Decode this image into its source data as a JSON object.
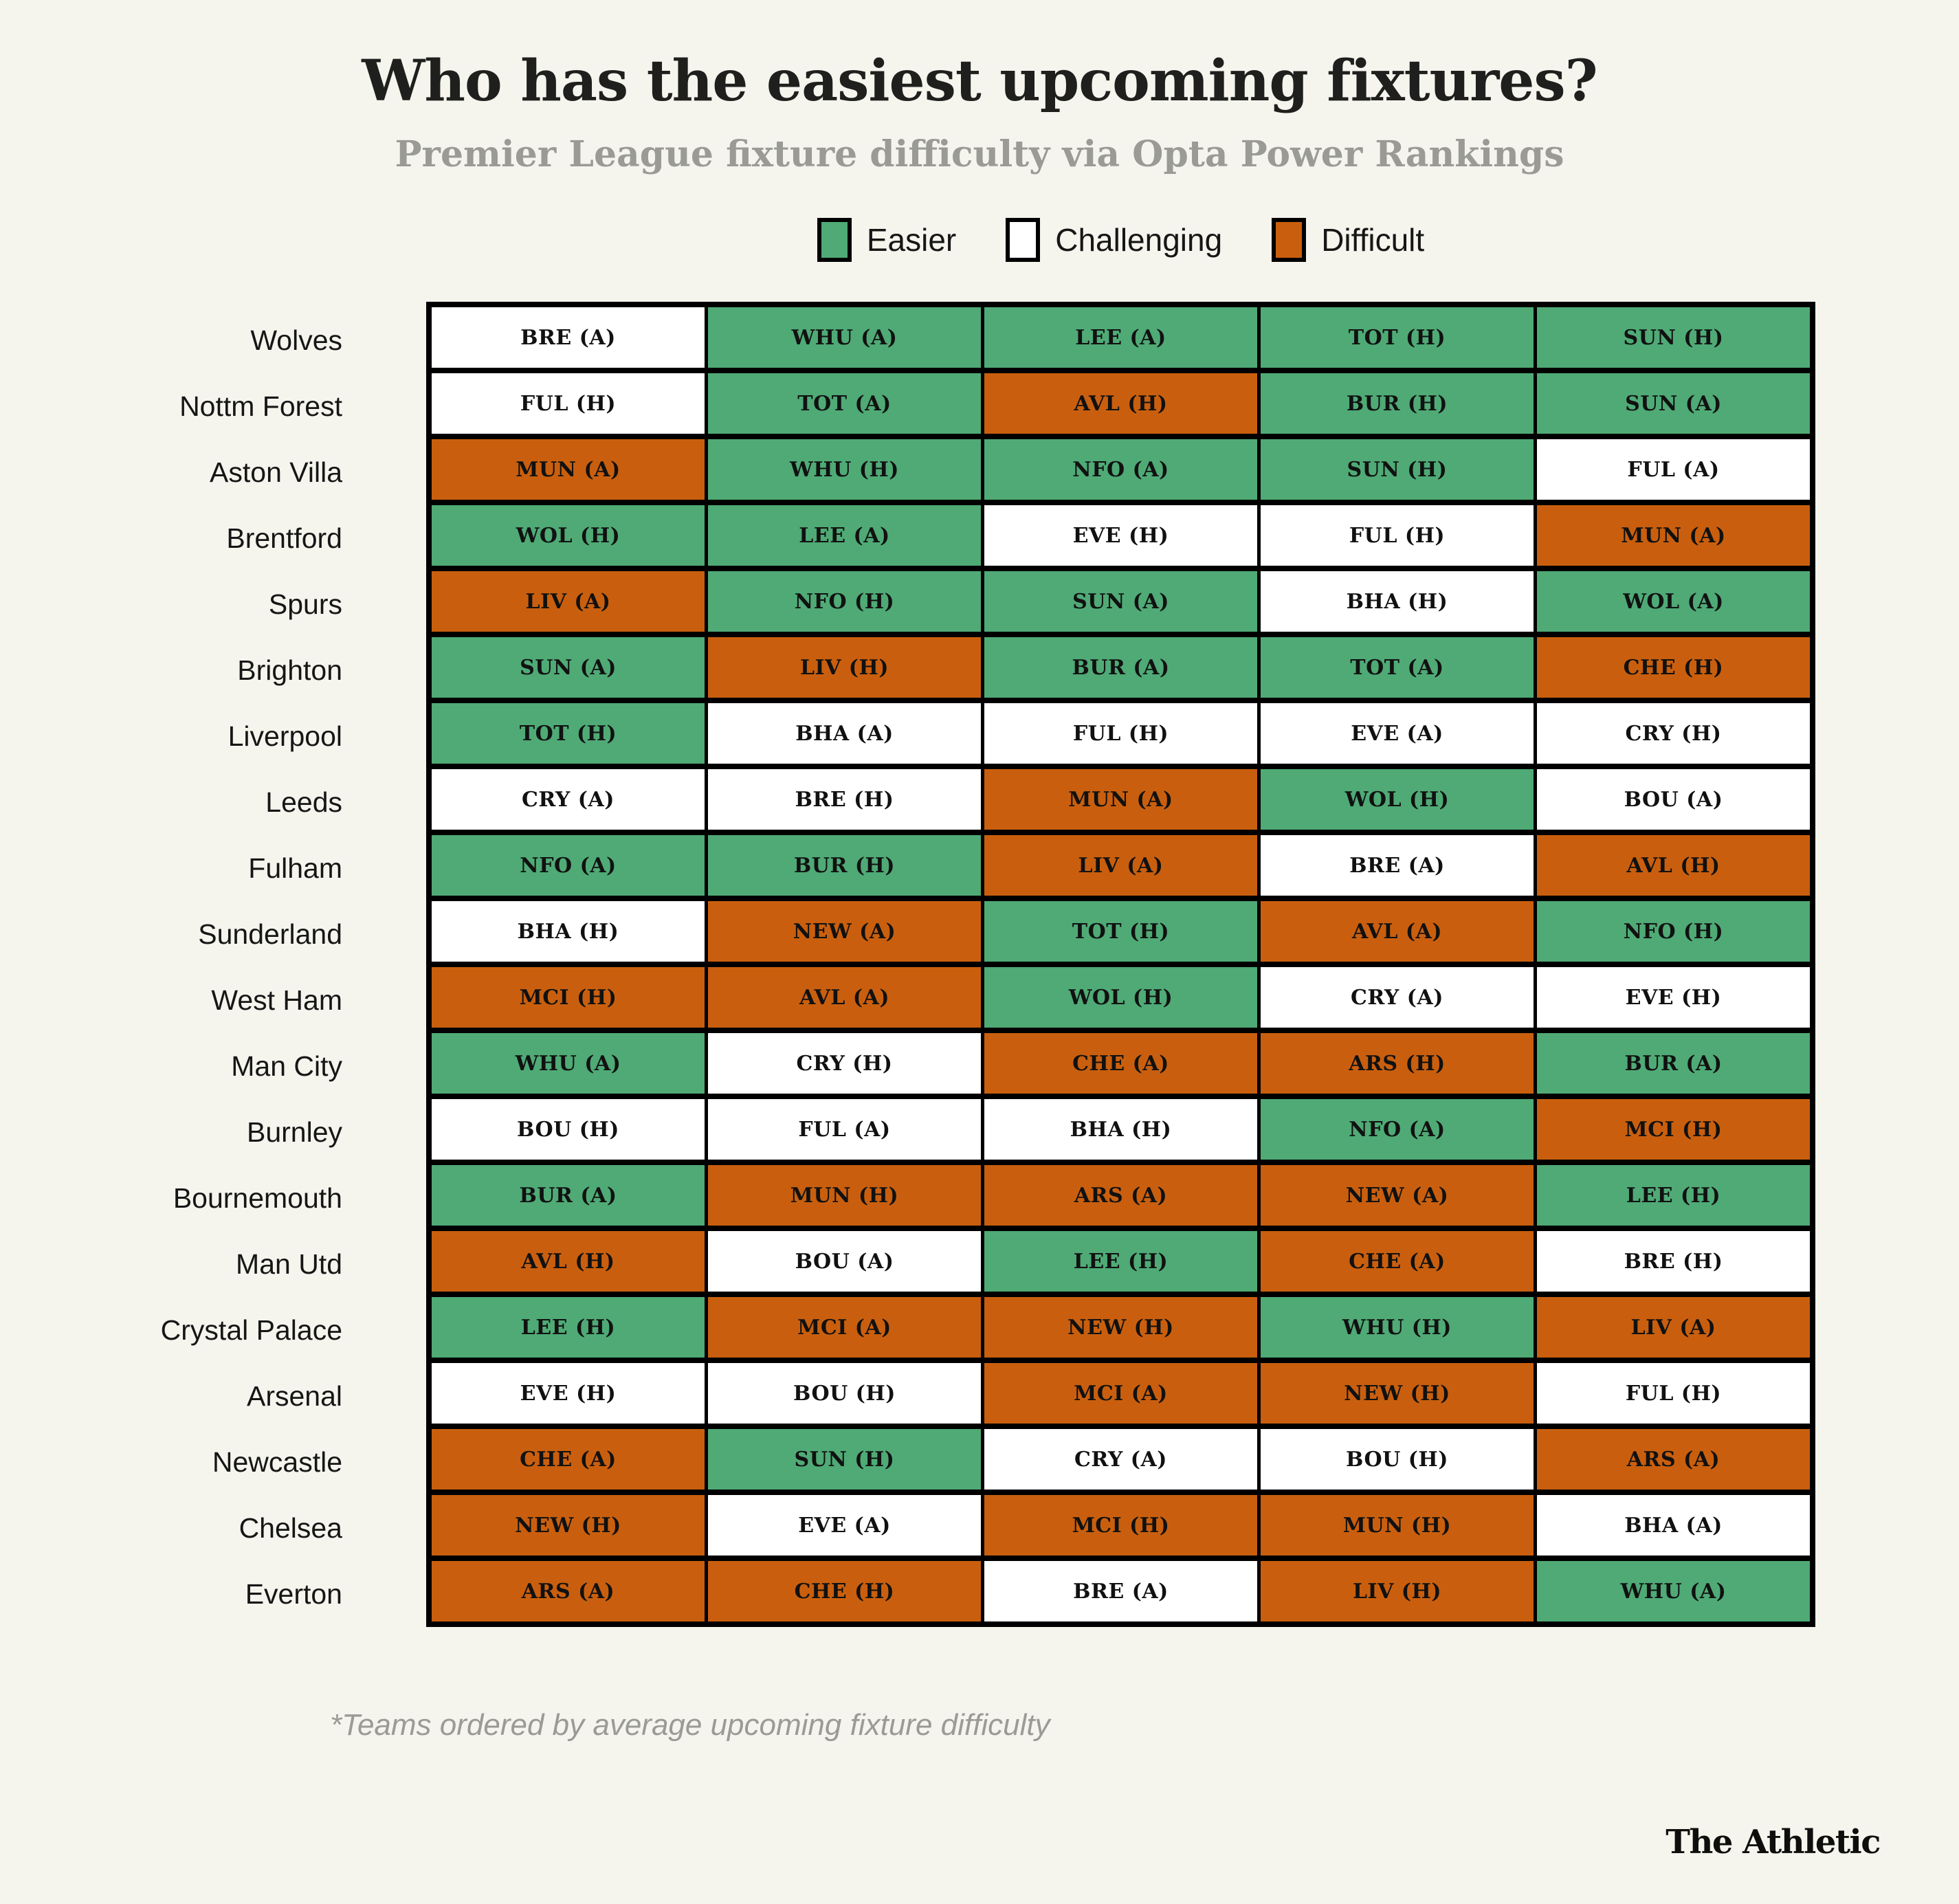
{
  "title": "Who has the easiest upcoming fixtures?",
  "subtitle": "Premier League fixture difficulty via Opta Power Rankings",
  "footnote": "*Teams ordered by average upcoming fixture difficulty",
  "brand": "The Athletic",
  "colors": {
    "easier": "#4FAA76",
    "challenging": "#FFFFFF",
    "difficult": "#C95F0E",
    "background": "#F5F5EE",
    "grid_border": "#000000",
    "title_text": "#1F1F1D",
    "muted_text": "#9B9B95"
  },
  "legend": [
    {
      "label": "Easier",
      "color": "#4FAA76"
    },
    {
      "label": "Challenging",
      "color": "#FFFFFF"
    },
    {
      "label": "Difficult",
      "color": "#C95F0E"
    }
  ],
  "chart_data": {
    "type": "heatmap",
    "title": "Who has the easiest upcoming fixtures?",
    "subtitle": "Premier League fixture difficulty via Opta Power Rankings",
    "legend_position": "top",
    "difficulty_levels": [
      "easier",
      "challenging",
      "difficult"
    ],
    "teams": [
      {
        "name": "Wolves",
        "fixtures": [
          {
            "opponent": "BRE (A)",
            "difficulty": "challenging"
          },
          {
            "opponent": "WHU (A)",
            "difficulty": "easier"
          },
          {
            "opponent": "LEE (A)",
            "difficulty": "easier"
          },
          {
            "opponent": "TOT (H)",
            "difficulty": "easier"
          },
          {
            "opponent": "SUN (H)",
            "difficulty": "easier"
          }
        ]
      },
      {
        "name": "Nottm Forest",
        "fixtures": [
          {
            "opponent": "FUL (H)",
            "difficulty": "challenging"
          },
          {
            "opponent": "TOT (A)",
            "difficulty": "easier"
          },
          {
            "opponent": "AVL (H)",
            "difficulty": "difficult"
          },
          {
            "opponent": "BUR (H)",
            "difficulty": "easier"
          },
          {
            "opponent": "SUN (A)",
            "difficulty": "easier"
          }
        ]
      },
      {
        "name": "Aston Villa",
        "fixtures": [
          {
            "opponent": "MUN (A)",
            "difficulty": "difficult"
          },
          {
            "opponent": "WHU (H)",
            "difficulty": "easier"
          },
          {
            "opponent": "NFO (A)",
            "difficulty": "easier"
          },
          {
            "opponent": "SUN (H)",
            "difficulty": "easier"
          },
          {
            "opponent": "FUL (A)",
            "difficulty": "challenging"
          }
        ]
      },
      {
        "name": "Brentford",
        "fixtures": [
          {
            "opponent": "WOL (H)",
            "difficulty": "easier"
          },
          {
            "opponent": "LEE (A)",
            "difficulty": "easier"
          },
          {
            "opponent": "EVE (H)",
            "difficulty": "challenging"
          },
          {
            "opponent": "FUL (H)",
            "difficulty": "challenging"
          },
          {
            "opponent": "MUN (A)",
            "difficulty": "difficult"
          }
        ]
      },
      {
        "name": "Spurs",
        "fixtures": [
          {
            "opponent": "LIV (A)",
            "difficulty": "difficult"
          },
          {
            "opponent": "NFO (H)",
            "difficulty": "easier"
          },
          {
            "opponent": "SUN (A)",
            "difficulty": "easier"
          },
          {
            "opponent": "BHA (H)",
            "difficulty": "challenging"
          },
          {
            "opponent": "WOL (A)",
            "difficulty": "easier"
          }
        ]
      },
      {
        "name": "Brighton",
        "fixtures": [
          {
            "opponent": "SUN (A)",
            "difficulty": "easier"
          },
          {
            "opponent": "LIV (H)",
            "difficulty": "difficult"
          },
          {
            "opponent": "BUR (A)",
            "difficulty": "easier"
          },
          {
            "opponent": "TOT (A)",
            "difficulty": "easier"
          },
          {
            "opponent": "CHE (H)",
            "difficulty": "difficult"
          }
        ]
      },
      {
        "name": "Liverpool",
        "fixtures": [
          {
            "opponent": "TOT (H)",
            "difficulty": "easier"
          },
          {
            "opponent": "BHA (A)",
            "difficulty": "challenging"
          },
          {
            "opponent": "FUL (H)",
            "difficulty": "challenging"
          },
          {
            "opponent": "EVE (A)",
            "difficulty": "challenging"
          },
          {
            "opponent": "CRY (H)",
            "difficulty": "challenging"
          }
        ]
      },
      {
        "name": "Leeds",
        "fixtures": [
          {
            "opponent": "CRY (A)",
            "difficulty": "challenging"
          },
          {
            "opponent": "BRE (H)",
            "difficulty": "challenging"
          },
          {
            "opponent": "MUN (A)",
            "difficulty": "difficult"
          },
          {
            "opponent": "WOL (H)",
            "difficulty": "easier"
          },
          {
            "opponent": "BOU (A)",
            "difficulty": "challenging"
          }
        ]
      },
      {
        "name": "Fulham",
        "fixtures": [
          {
            "opponent": "NFO (A)",
            "difficulty": "easier"
          },
          {
            "opponent": "BUR (H)",
            "difficulty": "easier"
          },
          {
            "opponent": "LIV (A)",
            "difficulty": "difficult"
          },
          {
            "opponent": "BRE (A)",
            "difficulty": "challenging"
          },
          {
            "opponent": "AVL (H)",
            "difficulty": "difficult"
          }
        ]
      },
      {
        "name": "Sunderland",
        "fixtures": [
          {
            "opponent": "BHA (H)",
            "difficulty": "challenging"
          },
          {
            "opponent": "NEW (A)",
            "difficulty": "difficult"
          },
          {
            "opponent": "TOT (H)",
            "difficulty": "easier"
          },
          {
            "opponent": "AVL (A)",
            "difficulty": "difficult"
          },
          {
            "opponent": "NFO (H)",
            "difficulty": "easier"
          }
        ]
      },
      {
        "name": "West Ham",
        "fixtures": [
          {
            "opponent": "MCI (H)",
            "difficulty": "difficult"
          },
          {
            "opponent": "AVL (A)",
            "difficulty": "difficult"
          },
          {
            "opponent": "WOL (H)",
            "difficulty": "easier"
          },
          {
            "opponent": "CRY (A)",
            "difficulty": "challenging"
          },
          {
            "opponent": "EVE (H)",
            "difficulty": "challenging"
          }
        ]
      },
      {
        "name": "Man City",
        "fixtures": [
          {
            "opponent": "WHU (A)",
            "difficulty": "easier"
          },
          {
            "opponent": "CRY (H)",
            "difficulty": "challenging"
          },
          {
            "opponent": "CHE (A)",
            "difficulty": "difficult"
          },
          {
            "opponent": "ARS (H)",
            "difficulty": "difficult"
          },
          {
            "opponent": "BUR (A)",
            "difficulty": "easier"
          }
        ]
      },
      {
        "name": "Burnley",
        "fixtures": [
          {
            "opponent": "BOU (H)",
            "difficulty": "challenging"
          },
          {
            "opponent": "FUL (A)",
            "difficulty": "challenging"
          },
          {
            "opponent": "BHA (H)",
            "difficulty": "challenging"
          },
          {
            "opponent": "NFO (A)",
            "difficulty": "easier"
          },
          {
            "opponent": "MCI (H)",
            "difficulty": "difficult"
          }
        ]
      },
      {
        "name": "Bournemouth",
        "fixtures": [
          {
            "opponent": "BUR (A)",
            "difficulty": "easier"
          },
          {
            "opponent": "MUN (H)",
            "difficulty": "difficult"
          },
          {
            "opponent": "ARS (A)",
            "difficulty": "difficult"
          },
          {
            "opponent": "NEW (A)",
            "difficulty": "difficult"
          },
          {
            "opponent": "LEE (H)",
            "difficulty": "easier"
          }
        ]
      },
      {
        "name": "Man Utd",
        "fixtures": [
          {
            "opponent": "AVL (H)",
            "difficulty": "difficult"
          },
          {
            "opponent": "BOU (A)",
            "difficulty": "challenging"
          },
          {
            "opponent": "LEE (H)",
            "difficulty": "easier"
          },
          {
            "opponent": "CHE (A)",
            "difficulty": "difficult"
          },
          {
            "opponent": "BRE (H)",
            "difficulty": "challenging"
          }
        ]
      },
      {
        "name": "Crystal Palace",
        "fixtures": [
          {
            "opponent": "LEE (H)",
            "difficulty": "easier"
          },
          {
            "opponent": "MCI (A)",
            "difficulty": "difficult"
          },
          {
            "opponent": "NEW (H)",
            "difficulty": "difficult"
          },
          {
            "opponent": "WHU (H)",
            "difficulty": "easier"
          },
          {
            "opponent": "LIV (A)",
            "difficulty": "difficult"
          }
        ]
      },
      {
        "name": "Arsenal",
        "fixtures": [
          {
            "opponent": "EVE (H)",
            "difficulty": "challenging"
          },
          {
            "opponent": "BOU (H)",
            "difficulty": "challenging"
          },
          {
            "opponent": "MCI (A)",
            "difficulty": "difficult"
          },
          {
            "opponent": "NEW (H)",
            "difficulty": "difficult"
          },
          {
            "opponent": "FUL (H)",
            "difficulty": "challenging"
          }
        ]
      },
      {
        "name": "Newcastle",
        "fixtures": [
          {
            "opponent": "CHE (A)",
            "difficulty": "difficult"
          },
          {
            "opponent": "SUN (H)",
            "difficulty": "easier"
          },
          {
            "opponent": "CRY (A)",
            "difficulty": "challenging"
          },
          {
            "opponent": "BOU (H)",
            "difficulty": "challenging"
          },
          {
            "opponent": "ARS (A)",
            "difficulty": "difficult"
          }
        ]
      },
      {
        "name": "Chelsea",
        "fixtures": [
          {
            "opponent": "NEW (H)",
            "difficulty": "difficult"
          },
          {
            "opponent": "EVE (A)",
            "difficulty": "challenging"
          },
          {
            "opponent": "MCI (H)",
            "difficulty": "difficult"
          },
          {
            "opponent": "MUN (H)",
            "difficulty": "difficult"
          },
          {
            "opponent": "BHA (A)",
            "difficulty": "challenging"
          }
        ]
      },
      {
        "name": "Everton",
        "fixtures": [
          {
            "opponent": "ARS (A)",
            "difficulty": "difficult"
          },
          {
            "opponent": "CHE (H)",
            "difficulty": "difficult"
          },
          {
            "opponent": "BRE (A)",
            "difficulty": "challenging"
          },
          {
            "opponent": "LIV (H)",
            "difficulty": "difficult"
          },
          {
            "opponent": "WHU (A)",
            "difficulty": "easier"
          }
        ]
      }
    ]
  }
}
